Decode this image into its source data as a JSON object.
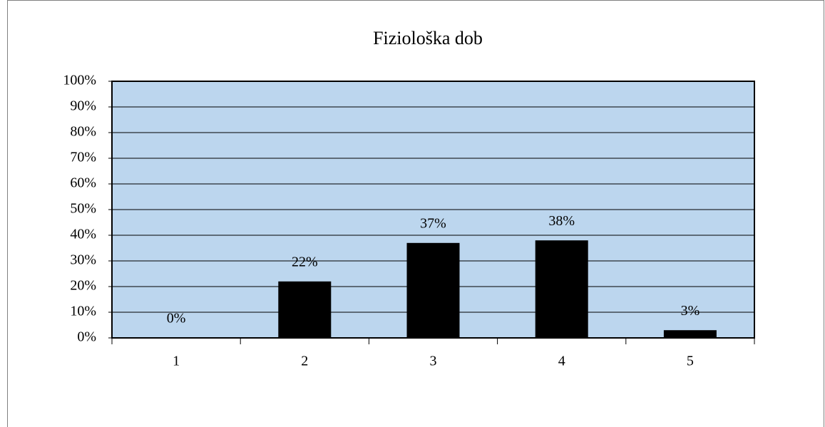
{
  "chart_data": {
    "type": "bar",
    "title": "Fiziološka dob",
    "categories": [
      "1",
      "2",
      "3",
      "4",
      "5"
    ],
    "values": [
      0,
      22,
      37,
      38,
      3
    ],
    "value_labels": [
      "0%",
      "22%",
      "37%",
      "38%",
      "3%"
    ],
    "color": "#000000",
    "ylim": [
      0,
      100
    ],
    "yticks": [
      {
        "value": 0,
        "label": "0%"
      },
      {
        "value": 10,
        "label": "10%"
      },
      {
        "value": 20,
        "label": "20%"
      },
      {
        "value": 30,
        "label": "30%"
      },
      {
        "value": 40,
        "label": "40%"
      },
      {
        "value": 50,
        "label": "50%"
      },
      {
        "value": 60,
        "label": "60%"
      },
      {
        "value": 70,
        "label": "70%"
      },
      {
        "value": 80,
        "label": "80%"
      },
      {
        "value": 90,
        "label": "90%"
      },
      {
        "value": 100,
        "label": "100%"
      }
    ],
    "grid": true
  }
}
